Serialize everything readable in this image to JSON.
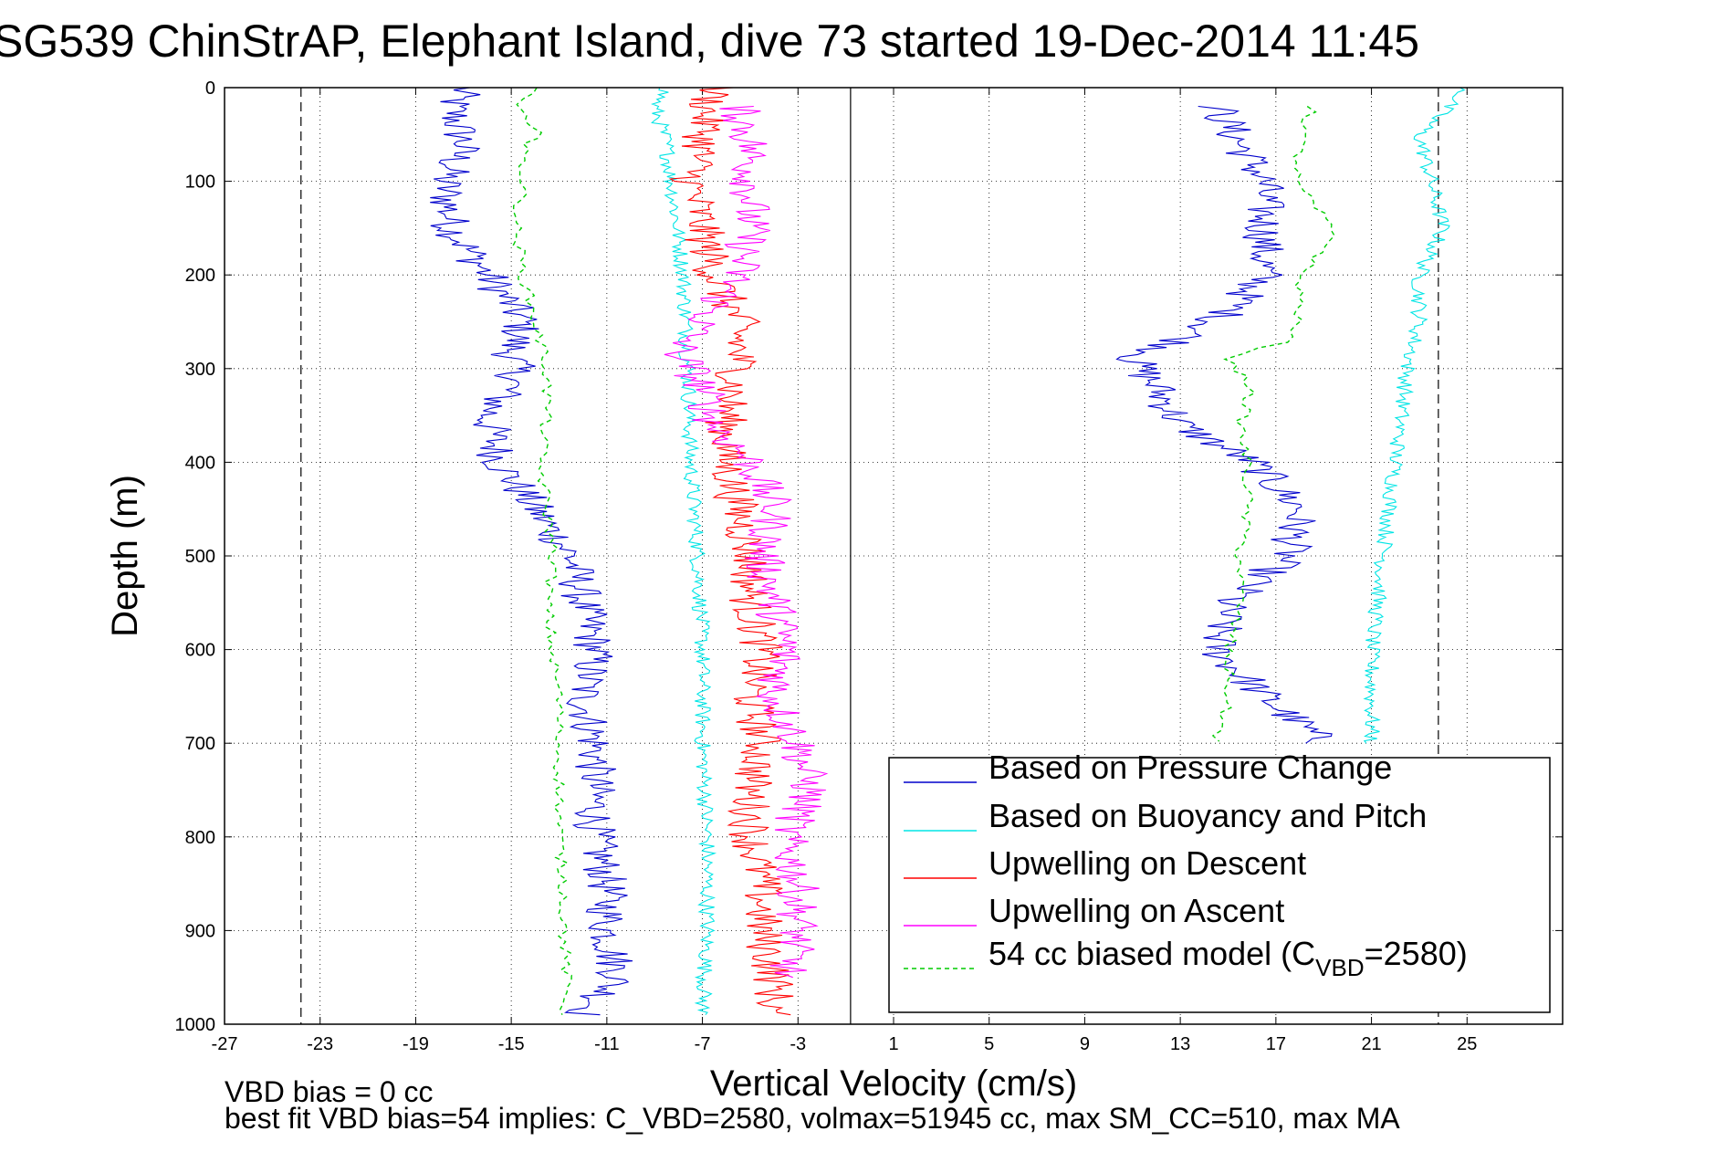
{
  "chart_data": {
    "type": "line",
    "title": "SG539 ChinStrAP, Elephant Island, dive 73 started 19-Dec-2014 11:45",
    "xlabel": "Vertical Velocity (cm/s)",
    "ylabel": "Depth (m)",
    "xlim": [
      -27,
      29
    ],
    "ylim": [
      1000,
      0
    ],
    "y_reversed": true,
    "xticks": [
      "-27",
      "-23",
      "-19",
      "-15",
      "-11",
      "-7",
      "-3",
      "1",
      "5",
      "9",
      "13",
      "17",
      "21",
      "25"
    ],
    "yticks": [
      "0",
      "100",
      "200",
      "300",
      "400",
      "500",
      "600",
      "700",
      "800",
      "900",
      "1000"
    ],
    "grid": "dotted",
    "legend_position": "bottom-right",
    "reference_lines": [
      {
        "x": -23.8,
        "style": "dashed"
      },
      {
        "x": 23.8,
        "style": "dashed"
      },
      {
        "x": -0.8,
        "style": "solid"
      }
    ],
    "footnote_lines": [
      "VBD bias = 0 cc",
      "best fit VBD bias=54 implies: C_VBD=2580, volmax=51945 cc, max SM_CC=510, max MA"
    ],
    "series": [
      {
        "name": "Based on Pressure Change",
        "color": "#0000cc",
        "descent": {
          "depth": [
            0,
            20,
            60,
            100,
            150,
            200,
            250,
            280,
            310,
            350,
            400,
            450,
            500,
            550,
            600,
            650,
            700,
            750,
            800,
            850,
            900,
            950,
            990
          ],
          "velocity": [
            -17,
            -17.5,
            -17,
            -17.8,
            -17.5,
            -16,
            -14.5,
            -15,
            -14.8,
            -16,
            -15.5,
            -14,
            -12.5,
            -12,
            -11.5,
            -12,
            -11.5,
            -11.5,
            -11.5,
            -11,
            -11,
            -10.5,
            -12
          ]
        },
        "ascent": {
          "depth": [
            20,
            60,
            100,
            150,
            200,
            240,
            270,
            290,
            320,
            360,
            400,
            450,
            500,
            550,
            600,
            650,
            700
          ],
          "velocity": [
            14.5,
            15.5,
            16.5,
            16.5,
            16.5,
            15,
            13,
            11,
            12,
            13,
            16,
            18,
            17.5,
            15,
            14.5,
            16.5,
            19
          ]
        }
      },
      {
        "name": "Based on Buoyancy and Pitch",
        "color": "#00e5e5",
        "descent": {
          "depth": [
            0,
            20,
            60,
            100,
            200,
            300,
            400,
            500,
            600,
            700,
            800,
            900,
            990
          ],
          "velocity": [
            -8.5,
            -9,
            -8.5,
            -8.3,
            -7.8,
            -7.6,
            -7.5,
            -7.2,
            -7,
            -7,
            -6.8,
            -6.8,
            -7
          ]
        },
        "ascent": {
          "depth": [
            0,
            50,
            100,
            150,
            200,
            250,
            300,
            400,
            500,
            600,
            650,
            700
          ],
          "velocity": [
            25,
            23,
            23.5,
            24,
            23,
            23,
            22.5,
            22,
            21.5,
            21,
            21,
            21
          ]
        }
      },
      {
        "name": "Upwelling on Descent",
        "color": "#ff0000",
        "depth": [
          0,
          20,
          60,
          100,
          150,
          200,
          250,
          300,
          350,
          400,
          450,
          500,
          550,
          600,
          650,
          700,
          750,
          800,
          850,
          900,
          950,
          990
        ],
        "velocity": [
          -6.5,
          -6.8,
          -7,
          -7.5,
          -7,
          -6.5,
          -5.5,
          -5.5,
          -6,
          -6,
          -5.5,
          -5,
          -5,
          -4.5,
          -5,
          -4.5,
          -5,
          -5,
          -4.5,
          -4.5,
          -4,
          -4
        ]
      },
      {
        "name": "Upwelling on Ascent",
        "color": "#ff00ff",
        "depth": [
          20,
          60,
          100,
          150,
          200,
          250,
          280,
          320,
          360,
          400,
          450,
          500,
          550,
          600,
          650,
          700,
          750,
          800,
          850,
          900,
          950
        ],
        "velocity": [
          -5.5,
          -5,
          -5,
          -5,
          -5.5,
          -7,
          -8,
          -7,
          -6.5,
          -5,
          -4,
          -4.5,
          -4,
          -3.5,
          -4,
          -3,
          -2.5,
          -3.5,
          -3,
          -3,
          -3.5
        ]
      },
      {
        "name": "54 cc biased model (C<tspan>VBD</tspan>=2580)",
        "legend_text": "54 cc biased model (C",
        "legend_subscript": "VBD",
        "legend_suffix": "=2580)",
        "color": "#00cc00",
        "style": "dashed",
        "descent": {
          "depth": [
            0,
            20,
            50,
            60,
            100,
            150,
            200,
            250,
            300,
            350,
            400,
            450,
            500,
            550,
            600,
            650,
            700,
            750,
            800,
            850,
            900,
            950,
            990
          ],
          "velocity": [
            -14,
            -15,
            -13.5,
            -14.5,
            -14.5,
            -14.8,
            -14.5,
            -14,
            -13.5,
            -13.5,
            -13.8,
            -13.5,
            -13.2,
            -13.5,
            -13.3,
            -13,
            -13,
            -13,
            -13,
            -12.8,
            -12.8,
            -12.7,
            -12.8
          ]
        },
        "ascent": {
          "depth": [
            20,
            60,
            100,
            140,
            160,
            200,
            240,
            270,
            290,
            320,
            360,
            400,
            450,
            500,
            550,
            600,
            650,
            700
          ],
          "velocity": [
            18.5,
            18,
            17.8,
            19,
            19.5,
            18,
            18,
            17.5,
            15,
            16,
            15.5,
            15.8,
            15.8,
            15.5,
            15.5,
            15,
            15,
            14.5
          ]
        }
      }
    ]
  }
}
